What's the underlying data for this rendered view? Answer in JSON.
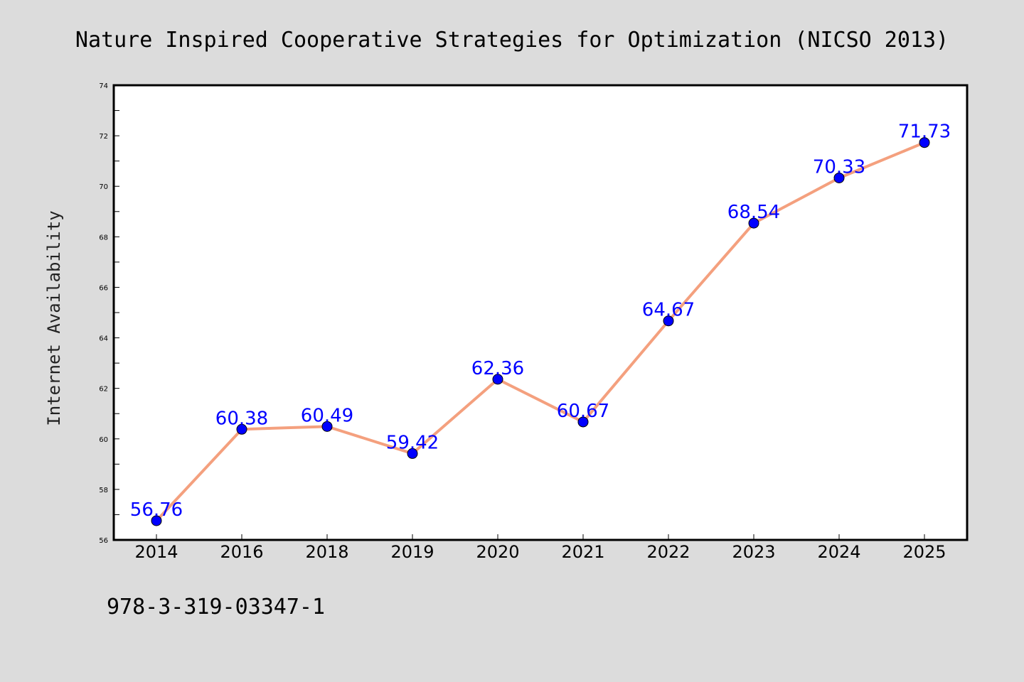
{
  "chart_data": {
    "type": "line",
    "title": "Nature Inspired Cooperative Strategies for Optimization (NICSO 2013)",
    "xlabel": "",
    "ylabel": "Internet Availability",
    "categories": [
      "2014",
      "2016",
      "2018",
      "2019",
      "2020",
      "2021",
      "2022",
      "2023",
      "2024",
      "2025"
    ],
    "series": [
      {
        "values": [
          56.76,
          60.38,
          60.49,
          59.42,
          62.36,
          60.67,
          64.67,
          68.54,
          70.33,
          71.73
        ]
      }
    ],
    "data_labels": [
      "56.76",
      "60.38",
      "60.49",
      "59.42",
      "62.36",
      "60.67",
      "64.67",
      "68.54",
      "70.33",
      "71.73"
    ],
    "ylim": [
      56,
      74
    ],
    "yticks": [
      "56",
      "58",
      "60",
      "62",
      "64",
      "66",
      "68",
      "70",
      "72",
      "74"
    ],
    "grid": false,
    "line_color": "#f4a07e",
    "marker_color": "#0000ff",
    "label_color": "#0000ff"
  },
  "footer": {
    "isbn": "978-3-319-03347-1"
  }
}
